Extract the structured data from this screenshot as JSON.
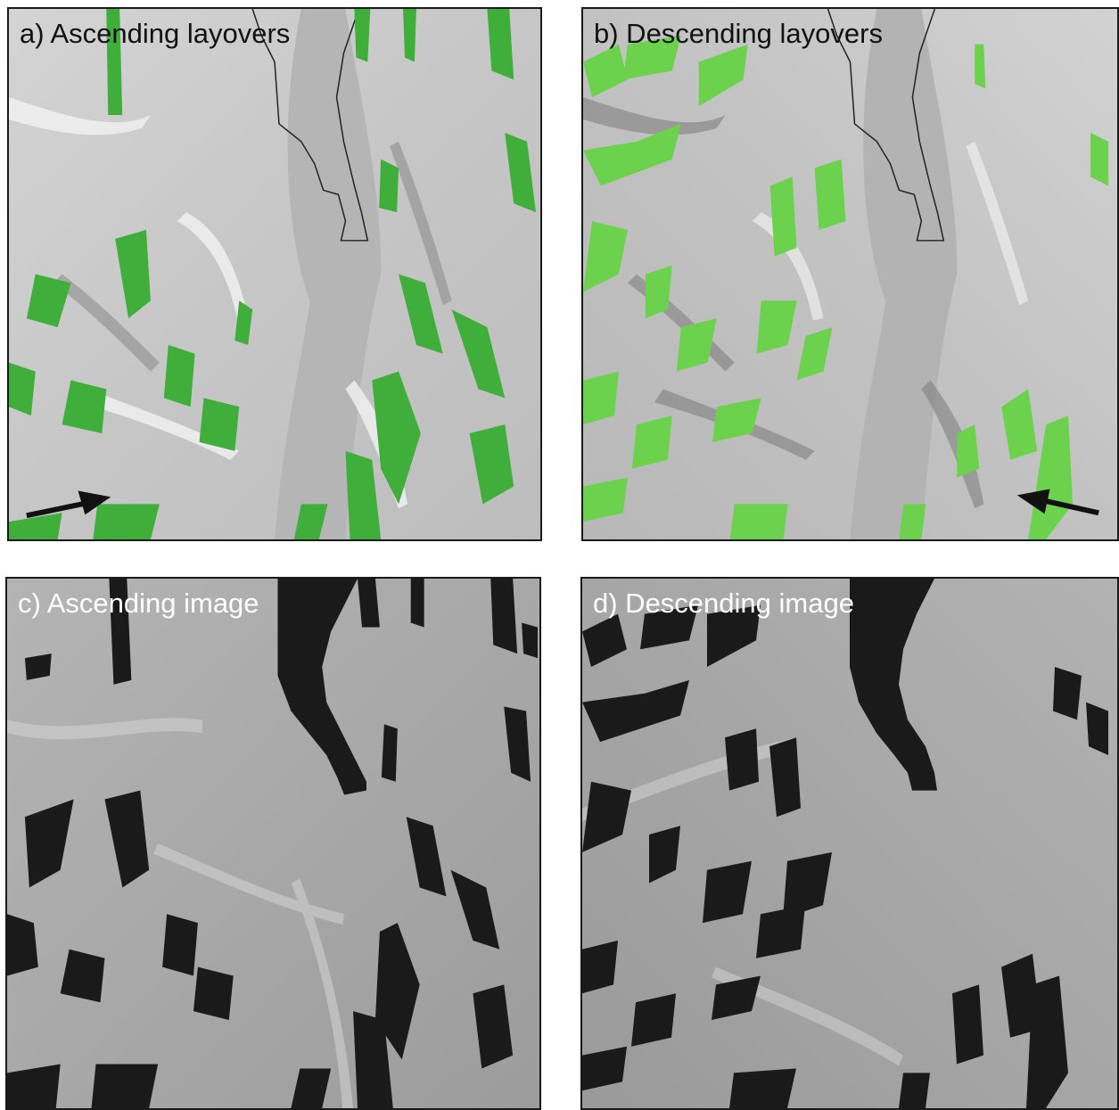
{
  "figure": {
    "panels": [
      {
        "id": "a",
        "label": "a) Ascending layovers"
      },
      {
        "id": "b",
        "label": "b) Descending layovers"
      },
      {
        "id": "c",
        "label": "c) Ascending image"
      },
      {
        "id": "d",
        "label": "d) Descending image"
      }
    ]
  },
  "colors": {
    "hillshade_gray": "#c8c8c8",
    "river_gray": "#b4b4b4",
    "layover_green_asc": "#3fae3a",
    "layover_green_desc": "#6cd24e",
    "sar_gray": "#a9a9a9",
    "shadow_black": "#1a1a1a",
    "border": "#1a1a1a"
  },
  "icons": [
    "look-direction-arrow-icon",
    "look-direction-arrow-icon"
  ]
}
